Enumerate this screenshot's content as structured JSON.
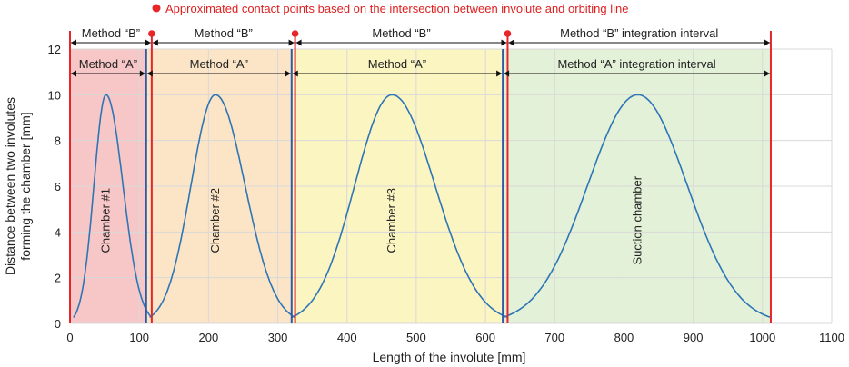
{
  "chart_data": {
    "type": "line",
    "xlabel": "Length of the involute [mm]",
    "ylabel_lines": [
      "Distance between two involutes",
      "forming the chamber [mm]"
    ],
    "xlim": [
      0,
      1100
    ],
    "ylim": [
      0,
      12
    ],
    "x_ticks": [
      "0",
      "100",
      "200",
      "300",
      "400",
      "500",
      "600",
      "700",
      "800",
      "900",
      "1000",
      "1100"
    ],
    "y_ticks": [
      "0",
      "2",
      "4",
      "6",
      "8",
      "10",
      "12"
    ],
    "grid": true,
    "legend": {
      "marker_color": "#e8262a",
      "text": "Approximated contact points based on the intersection between involute and orbiting line"
    },
    "regions": [
      {
        "x_start": 0,
        "x_end": 110,
        "color": "#f7c6c6",
        "name": "Chamber #1"
      },
      {
        "x_start": 110,
        "x_end": 320,
        "color": "#fbe5c6",
        "name": "Chamber #2"
      },
      {
        "x_start": 320,
        "x_end": 625,
        "color": "#fbf5c2",
        "name": "Chamber #3"
      },
      {
        "x_start": 625,
        "x_end": 1012,
        "color": "#e2f1d8",
        "name": "Suction chamber"
      }
    ],
    "series": [
      {
        "x_start": 5,
        "x_end": 118,
        "peak_x": 52,
        "peak_y": 10
      },
      {
        "x_start": 115,
        "x_end": 325,
        "peak_x": 210,
        "peak_y": 10
      },
      {
        "x_start": 320,
        "x_end": 632,
        "peak_x": 465,
        "peak_y": 10
      },
      {
        "x_start": 625,
        "x_end": 1012,
        "peak_x": 820,
        "peak_y": 10
      }
    ],
    "red_lines_x": [
      0,
      118,
      325,
      632,
      1012
    ],
    "blue_lines_x": [
      110,
      320,
      625
    ],
    "contact_points_x": [
      118,
      325,
      632
    ],
    "method_b": [
      {
        "x_start": 0,
        "x_end": 118,
        "label": "Method “B”"
      },
      {
        "x_start": 118,
        "x_end": 325,
        "label": "Method “B”"
      },
      {
        "x_start": 325,
        "x_end": 632,
        "label": "Method “B”"
      },
      {
        "x_start": 632,
        "x_end": 1012,
        "label": "Method “B” integration interval"
      }
    ],
    "method_a": [
      {
        "x_start": 0,
        "x_end": 110,
        "label": "Method “A”"
      },
      {
        "x_start": 110,
        "x_end": 320,
        "label": "Method “A”"
      },
      {
        "x_start": 320,
        "x_end": 625,
        "label": "Method “A”"
      },
      {
        "x_start": 625,
        "x_end": 1012,
        "label": "Method “A” integration interval"
      }
    ]
  }
}
